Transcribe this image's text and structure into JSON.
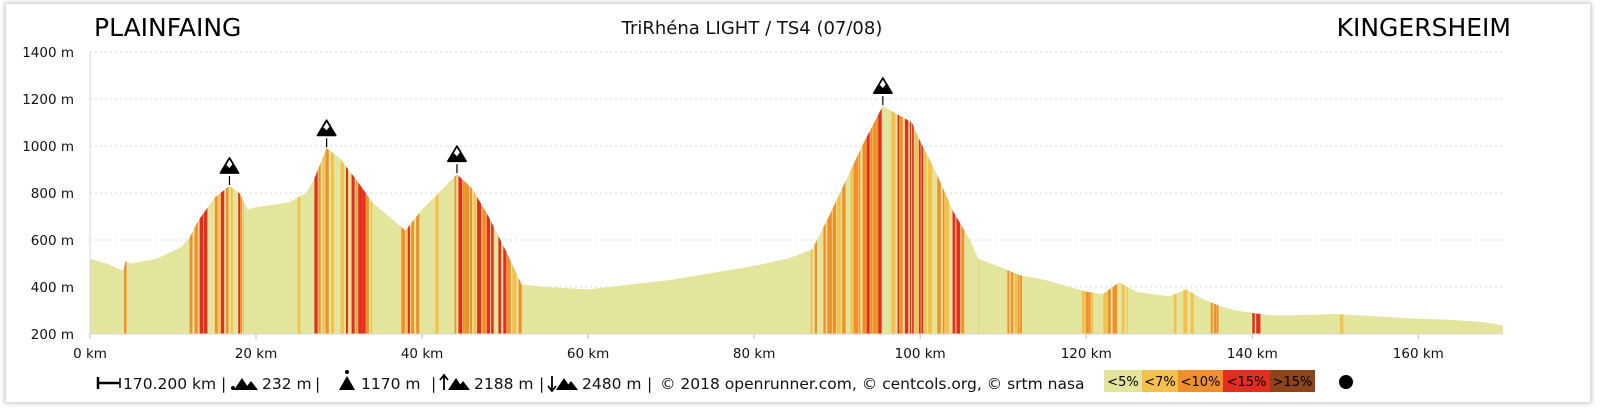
{
  "header": {
    "start_town": "PLAINFAING",
    "end_town": "KINGERSHEIM",
    "title": "TriRhéna LIGHT / TS4 (07/08)"
  },
  "footer": {
    "distance": "170.200 km",
    "min_alt": "232 m",
    "max_alt": "1170 m",
    "ascent": "2188 m",
    "descent": "2480 m",
    "credits": "© 2018 openrunner.com, © centcols.org, © srtm nasa",
    "sep": "|"
  },
  "legend": {
    "items": [
      {
        "label": "<5%",
        "color": "#e4e59d"
      },
      {
        "label": "<7%",
        "color": "#f4c24c"
      },
      {
        "label": "<10%",
        "color": "#f0902c"
      },
      {
        "label": "<15%",
        "color": "#e52c1e"
      },
      {
        "label": ">15%",
        "color": "#8e4419"
      }
    ]
  },
  "chart_data": {
    "type": "area",
    "title": "TriRhéna LIGHT / TS4 (07/08)",
    "xlabel": "",
    "ylabel": "",
    "xlim": [
      0,
      170.2
    ],
    "ylim": [
      200,
      1400
    ],
    "x_ticks": [
      0,
      20,
      40,
      60,
      80,
      100,
      120,
      140,
      160
    ],
    "y_ticks": [
      200,
      400,
      600,
      800,
      1000,
      1200,
      1400
    ],
    "x_tick_labels": [
      "0 km",
      "20 km",
      "40 km",
      "60 km",
      "80 km",
      "100 km",
      "120 km",
      "140 km",
      "160 km"
    ],
    "y_tick_labels": [
      "200 m",
      "400 m",
      "600 m",
      "800 m",
      "1000 m",
      "1200 m",
      "1400 m"
    ],
    "grid": true,
    "profile": {
      "x": [
        0,
        2,
        4,
        4.3,
        5,
        8,
        11,
        12,
        13,
        15,
        16.8,
        18,
        19,
        20,
        22,
        24,
        26,
        27,
        28.5,
        30,
        32,
        34,
        36,
        38,
        40,
        42,
        44.2,
        46,
        48,
        50,
        52,
        55,
        60,
        65,
        70,
        75,
        80,
        84,
        87,
        89,
        91,
        93,
        95.5,
        97,
        99,
        100,
        102,
        104,
        106,
        107,
        110,
        112,
        115,
        118,
        120,
        122,
        124,
        126,
        128,
        130,
        132,
        134,
        136,
        138,
        140,
        142,
        145,
        150,
        155,
        160,
        164,
        168,
        170.2
      ],
      "y": [
        520,
        500,
        470,
        510,
        500,
        520,
        570,
        610,
        680,
        780,
        830,
        800,
        730,
        740,
        750,
        760,
        800,
        860,
        990,
        950,
        860,
        760,
        700,
        640,
        730,
        800,
        880,
        820,
        700,
        560,
        410,
        400,
        390,
        410,
        430,
        460,
        490,
        520,
        560,
        700,
        850,
        1000,
        1170,
        1140,
        1100,
        1020,
        880,
        720,
        600,
        520,
        480,
        450,
        430,
        400,
        380,
        370,
        420,
        380,
        370,
        360,
        390,
        350,
        320,
        300,
        290,
        280,
        280,
        285,
        275,
        265,
        260,
        250,
        235
      ]
    },
    "summits": [
      {
        "x": 16.8,
        "y": 830
      },
      {
        "x": 28.5,
        "y": 990
      },
      {
        "x": 44.2,
        "y": 880
      },
      {
        "x": 95.5,
        "y": 1170
      }
    ],
    "steep_segments": [
      {
        "from": 4.1,
        "to": 4.4,
        "color": "#f0902c"
      },
      {
        "from": 12,
        "to": 18.5,
        "colors": [
          "#e52c1e",
          "#f0902c",
          "#f4c24c"
        ]
      },
      {
        "from": 25,
        "to": 34,
        "colors": [
          "#e52c1e",
          "#f0902c",
          "#f4c24c"
        ]
      },
      {
        "from": 37.5,
        "to": 52,
        "colors": [
          "#e52c1e",
          "#f0902c",
          "#f4c24c"
        ]
      },
      {
        "from": 86.8,
        "to": 107,
        "colors": [
          "#e52c1e",
          "#f0902c",
          "#f4c24c"
        ]
      },
      {
        "from": 110.5,
        "to": 112.5,
        "colors": [
          "#f4c24c",
          "#f0902c"
        ]
      },
      {
        "from": 119,
        "to": 125,
        "colors": [
          "#f4c24c",
          "#f0902c"
        ]
      },
      {
        "from": 130,
        "to": 133,
        "colors": [
          "#f4c24c"
        ]
      },
      {
        "from": 135,
        "to": 136,
        "colors": [
          "#f0902c"
        ]
      },
      {
        "from": 140,
        "to": 141,
        "colors": [
          "#e52c1e"
        ]
      },
      {
        "from": 150,
        "to": 151,
        "colors": [
          "#f4c24c"
        ]
      }
    ]
  }
}
